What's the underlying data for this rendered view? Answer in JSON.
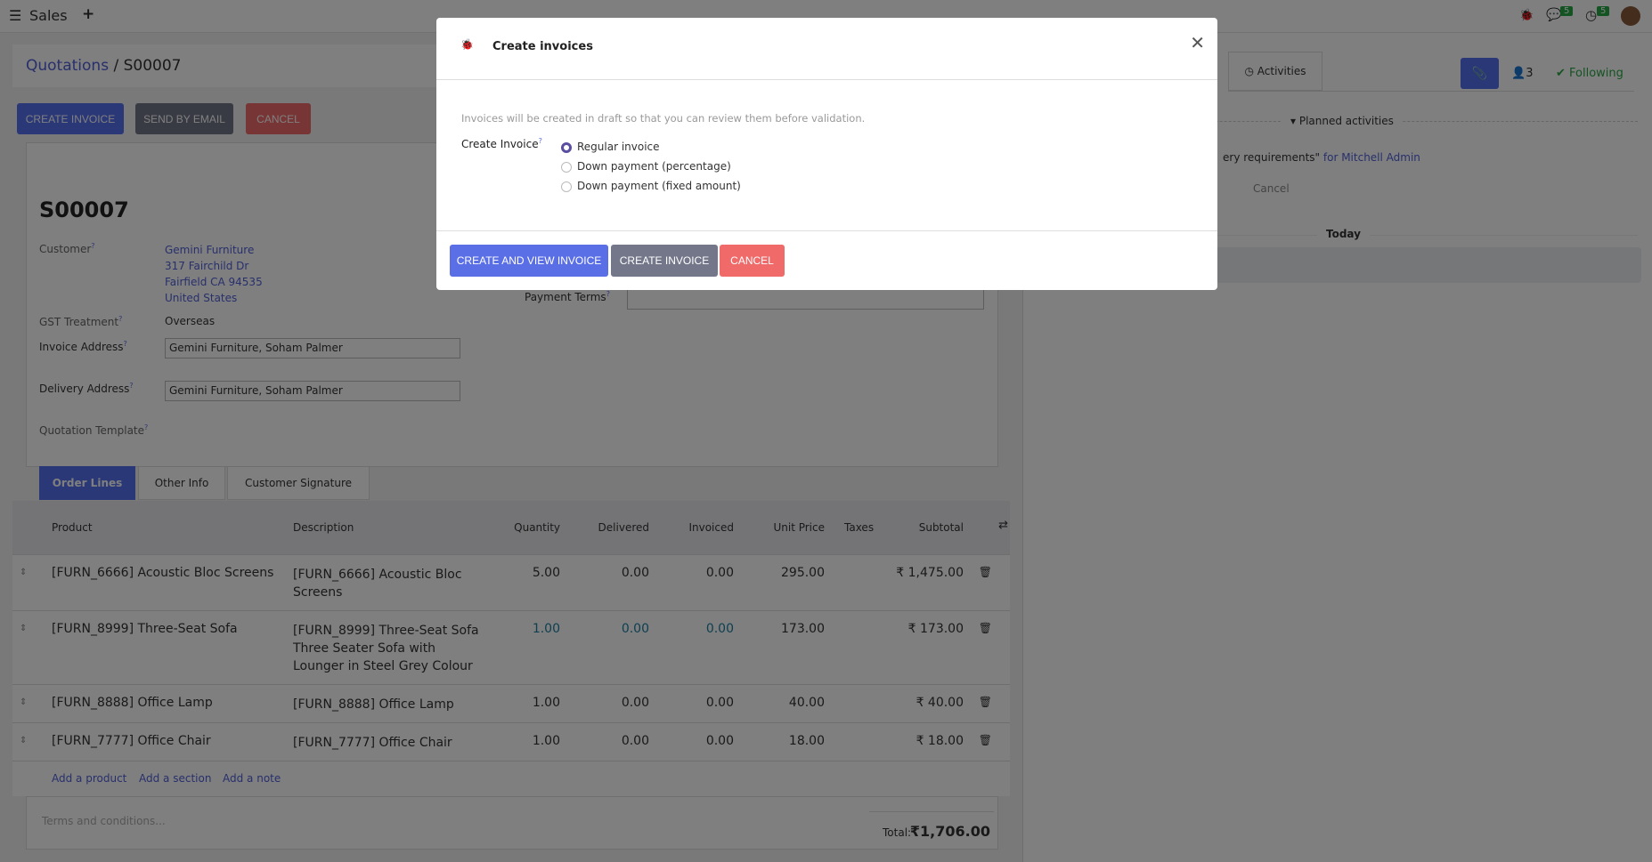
{
  "topbar": {
    "app": "Sales",
    "plus": "+",
    "messages_count": "5",
    "activities_count": "5"
  },
  "breadcrumb": {
    "parent": "Quotations",
    "sep": "/",
    "current": "S00007"
  },
  "actions": {
    "create_invoice": "CREATE INVOICE",
    "send_email": "SEND BY EMAIL",
    "cancel": "CANCEL"
  },
  "form": {
    "title": "S00007",
    "customer_label": "Customer",
    "customer_lines": [
      "Gemini Furniture",
      "317 Fairchild Dr",
      "Fairfield CA 94535",
      "United States"
    ],
    "gst_label": "GST Treatment",
    "gst_value": "Overseas",
    "invoice_address_label": "Invoice Address",
    "invoice_address": "Gemini Furniture, Soham Palmer",
    "delivery_address_label": "Delivery Address",
    "delivery_address": "Gemini Furniture, Soham Palmer",
    "template_label": "Quotation Template",
    "payment_terms_label": "Payment Terms",
    "help": "?"
  },
  "tabs": [
    "Order Lines",
    "Other Info",
    "Customer Signature"
  ],
  "table": {
    "headers": [
      "Product",
      "Description",
      "Quantity",
      "Delivered",
      "Invoiced",
      "Unit Price",
      "Taxes",
      "Subtotal"
    ],
    "rows": [
      {
        "product": "[FURN_6666] Acoustic Bloc Screens",
        "description": [
          "[FURN_6666] Acoustic Bloc",
          "Screens"
        ],
        "qty": "5.00",
        "delivered": "0.00",
        "invoiced": "0.00",
        "price": "295.00",
        "taxes": "",
        "subtotal": "₹ 1,475.00"
      },
      {
        "product": "[FURN_8999] Three-Seat Sofa",
        "description": [
          "[FURN_8999] Three-Seat Sofa",
          "Three Seater Sofa with",
          "Lounger in Steel Grey Colour"
        ],
        "qty": "1.00",
        "delivered": "0.00",
        "invoiced": "0.00",
        "price": "173.00",
        "taxes": "",
        "subtotal": "₹ 173.00"
      },
      {
        "product": "[FURN_8888] Office Lamp",
        "description": [
          "[FURN_8888] Office Lamp"
        ],
        "qty": "1.00",
        "delivered": "0.00",
        "invoiced": "0.00",
        "price": "40.00",
        "taxes": "",
        "subtotal": "₹ 40.00"
      },
      {
        "product": "[FURN_7777] Office Chair",
        "description": [
          "[FURN_7777] Office Chair"
        ],
        "qty": "1.00",
        "delivered": "0.00",
        "invoiced": "0.00",
        "price": "18.00",
        "taxes": "",
        "subtotal": "₹ 18.00"
      }
    ],
    "add_product": "Add a product",
    "add_section": "Add a section",
    "add_note": "Add a note",
    "terms_placeholder": "Terms and conditions...",
    "total_label": "Total:",
    "total": "₹1,706.00"
  },
  "chatter": {
    "activities": "Activities",
    "followers": "3",
    "following": "Following",
    "planned": "Planned activities",
    "activity_text": "ery requirements\"",
    "activity_for": "for Mitchell Admin",
    "cancel": "Cancel",
    "today": "Today"
  },
  "modal": {
    "title": "Create invoices",
    "info": "Invoices will be created in draft so that you can review them before validation.",
    "field_label": "Create Invoice",
    "options": [
      "Regular invoice",
      "Down payment (percentage)",
      "Down payment (fixed amount)"
    ],
    "selected": "Regular invoice",
    "btn_create_view": "CREATE AND VIEW INVOICE",
    "btn_create": "CREATE INVOICE",
    "btn_cancel": "CANCEL"
  },
  "colors": {
    "primary": "#5a6ee6",
    "secondary": "#737789",
    "danger": "#f06a6a",
    "following": "#28a745"
  }
}
